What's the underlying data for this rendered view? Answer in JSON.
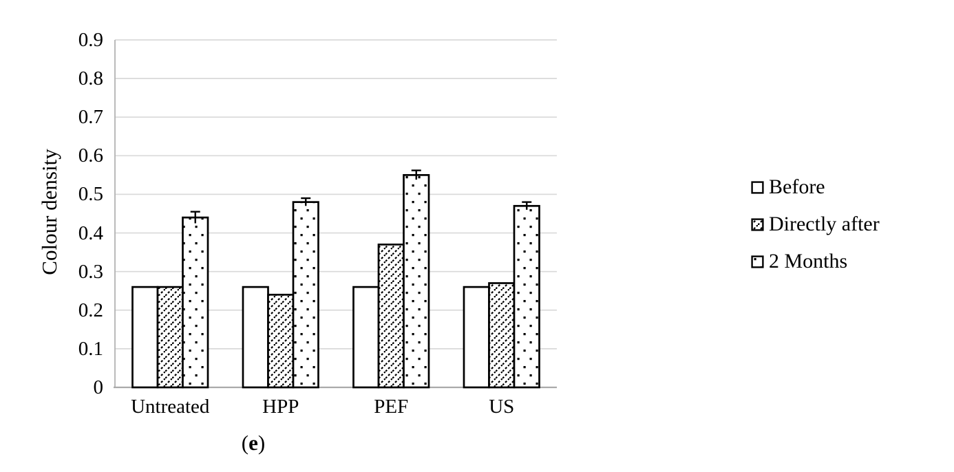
{
  "figure": {
    "caption_open": "(",
    "caption_letter": "e",
    "caption_close": ")"
  },
  "chart_data": {
    "type": "bar",
    "title": "",
    "ylabel": "Colour density",
    "xlabel": "",
    "ylim": [
      0,
      0.9
    ],
    "ytick_labels": [
      "0.9",
      "0.8",
      "0.7",
      "0.6",
      "0.5",
      "0.4",
      "0.3",
      "0.2",
      "0.1",
      "0"
    ],
    "categories": [
      "Untreated",
      "HPP",
      "PEF",
      "US"
    ],
    "series": [
      {
        "name": "Before",
        "pattern": "plain",
        "values": [
          0.26,
          0.26,
          0.26,
          0.26
        ],
        "errors": [
          0,
          0,
          0,
          0
        ]
      },
      {
        "name": "Directly after",
        "pattern": "hatch",
        "values": [
          0.26,
          0.24,
          0.37,
          0.27
        ],
        "errors": [
          0,
          0,
          0,
          0
        ]
      },
      {
        "name": "2 Months",
        "pattern": "dots",
        "values": [
          0.44,
          0.48,
          0.55,
          0.47
        ],
        "errors": [
          0.015,
          0.01,
          0.012,
          0.01
        ]
      }
    ],
    "legend_position": "right",
    "grid": true,
    "colors": {
      "bar_fill": "#ffffff",
      "bar_stroke": "#000000",
      "gridline": "#d9d9d9",
      "axis_line": "#aaaaaa",
      "text": "#000000"
    }
  }
}
